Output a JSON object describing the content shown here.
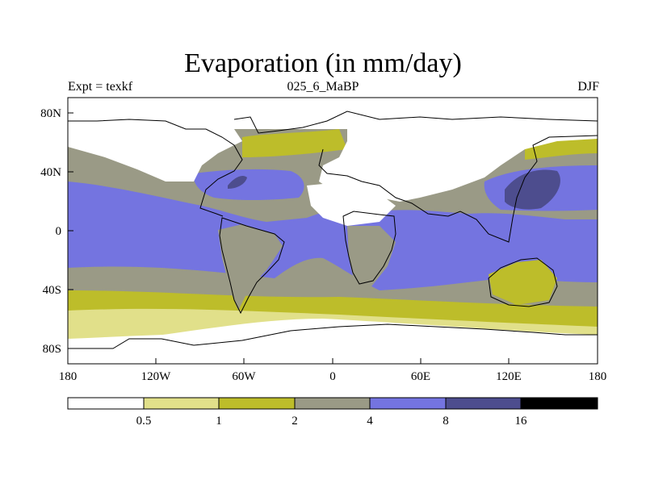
{
  "title": "Evaporation (in mm/day)",
  "subtitle_left": "Expt = texkf",
  "subtitle_center": "025_6_MaBP",
  "subtitle_right": "DJF",
  "x_ticks": [
    "180",
    "120W",
    "60W",
    "0",
    "60E",
    "120E",
    "180"
  ],
  "y_ticks": [
    "80N",
    "40N",
    "0",
    "40S",
    "80S"
  ],
  "colorbar": {
    "labels": [
      "0.5",
      "1",
      "2",
      "4",
      "8",
      "16"
    ],
    "colors": [
      "#ffffff",
      "#e1e08a",
      "#bdbd2a",
      "#9a9a86",
      "#7474e0",
      "#4d4d8e",
      "#000000"
    ]
  },
  "colors": {
    "ocean_high": "#7474e0",
    "ocean_mid": "#9a9a86",
    "band_low": "#bdbd2a",
    "band_lower": "#e1e08a",
    "very_high": "#4d4d8e",
    "land_dry": "#ffffff"
  }
}
